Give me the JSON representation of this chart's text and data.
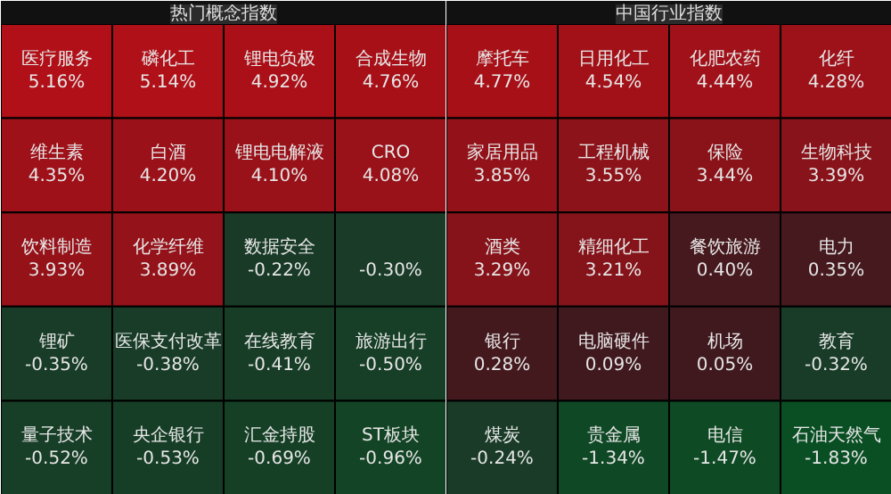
{
  "chart_data": [
    {
      "type": "other",
      "title": "热门概念指数",
      "categories": [
        "医疗服务",
        "磷化工",
        "锂电负极",
        "合成生物",
        "维生素",
        "白酒",
        "锂电电解液",
        "CRO",
        "饮料制造",
        "化学纤维",
        "数据安全",
        null,
        "锂矿",
        "医保支付改革",
        "在线教育",
        "旅游出行",
        "量子技术",
        "央企银行",
        "汇金持股",
        "ST板块"
      ],
      "values": [
        5.16,
        5.14,
        4.92,
        4.76,
        4.35,
        4.2,
        4.1,
        4.08,
        3.93,
        3.89,
        -0.22,
        -0.3,
        -0.35,
        -0.38,
        -0.41,
        -0.5,
        -0.52,
        -0.53,
        -0.69,
        -0.96
      ],
      "value_labels": [
        "5.16%",
        "5.14%",
        "4.92%",
        "4.76%",
        "4.35%",
        "4.20%",
        "4.10%",
        "4.08%",
        "3.93%",
        "3.89%",
        "-0.22%",
        "-0.30%",
        "-0.35%",
        "-0.38%",
        "-0.41%",
        "-0.50%",
        "-0.52%",
        "-0.53%",
        "-0.69%",
        "-0.96%"
      ]
    },
    {
      "type": "other",
      "title": "中国行业指数",
      "categories": [
        "摩托车",
        "日用化工",
        "化肥农药",
        "化纤",
        "家居用品",
        "工程机械",
        "保险",
        "生物科技",
        "酒类",
        "精细化工",
        "餐饮旅游",
        "电力",
        "银行",
        "电脑硬件",
        "机场",
        "教育",
        "煤炭",
        "贵金属",
        "电信",
        "石油天然气"
      ],
      "values": [
        4.77,
        4.54,
        4.44,
        4.28,
        3.85,
        3.55,
        3.44,
        3.39,
        3.29,
        3.21,
        0.4,
        0.35,
        0.28,
        0.09,
        0.05,
        -0.32,
        -0.24,
        -1.34,
        -1.47,
        -1.83
      ],
      "value_labels": [
        "4.77%",
        "4.54%",
        "4.44%",
        "4.28%",
        "3.85%",
        "3.55%",
        "3.44%",
        "3.39%",
        "3.29%",
        "3.21%",
        "0.40%",
        "0.35%",
        "0.28%",
        "0.09%",
        "0.05%",
        "-0.32%",
        "-0.24%",
        "-1.34%",
        "-1.47%",
        "-1.83%"
      ]
    }
  ]
}
